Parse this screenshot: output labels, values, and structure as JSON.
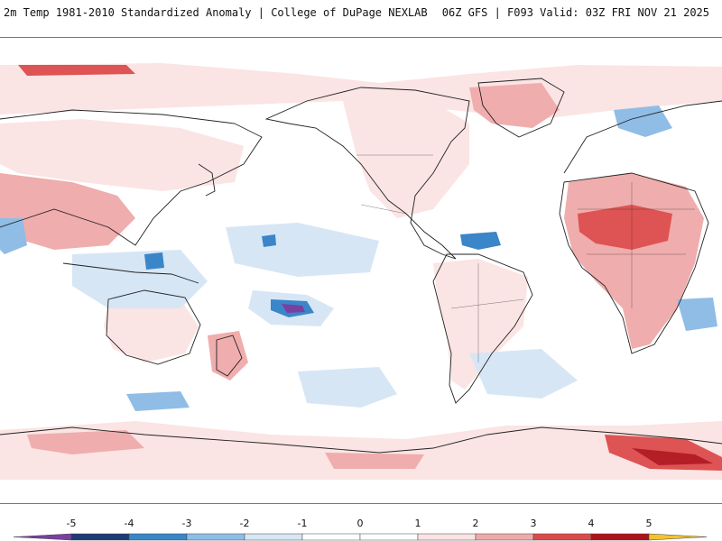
{
  "header": {
    "title": "2m Temp 1981-2010 Standardized Anomaly | College of DuPage NEXLAB",
    "model_info": "06Z GFS | F093 Valid: 03Z FRI NOV 21 2025"
  },
  "colorbar": {
    "ticks": [
      "-5",
      "-4",
      "-3",
      "-2",
      "-1",
      "0",
      "1",
      "2",
      "3",
      "4",
      "5"
    ],
    "colors": [
      "#7a3fa0",
      "#1f3b74",
      "#3a86c8",
      "#8fbde6",
      "#d7e6f5",
      "#ffffff",
      "#fbe3e3",
      "#f0a9a9",
      "#dd4a4a",
      "#b0121b",
      "#f2c230"
    ]
  },
  "palette": {
    "cold_strong": "#3a86c8",
    "cold_mid": "#8fbde6",
    "cold_light": "#d7e6f5",
    "warm_light": "#fbe3e3",
    "warm_mid": "#f0a9a9",
    "warm_strong": "#dd4a4a",
    "warm_extreme": "#b0121b",
    "cold_extreme": "#7a3fa0",
    "coastline": "#222222"
  }
}
